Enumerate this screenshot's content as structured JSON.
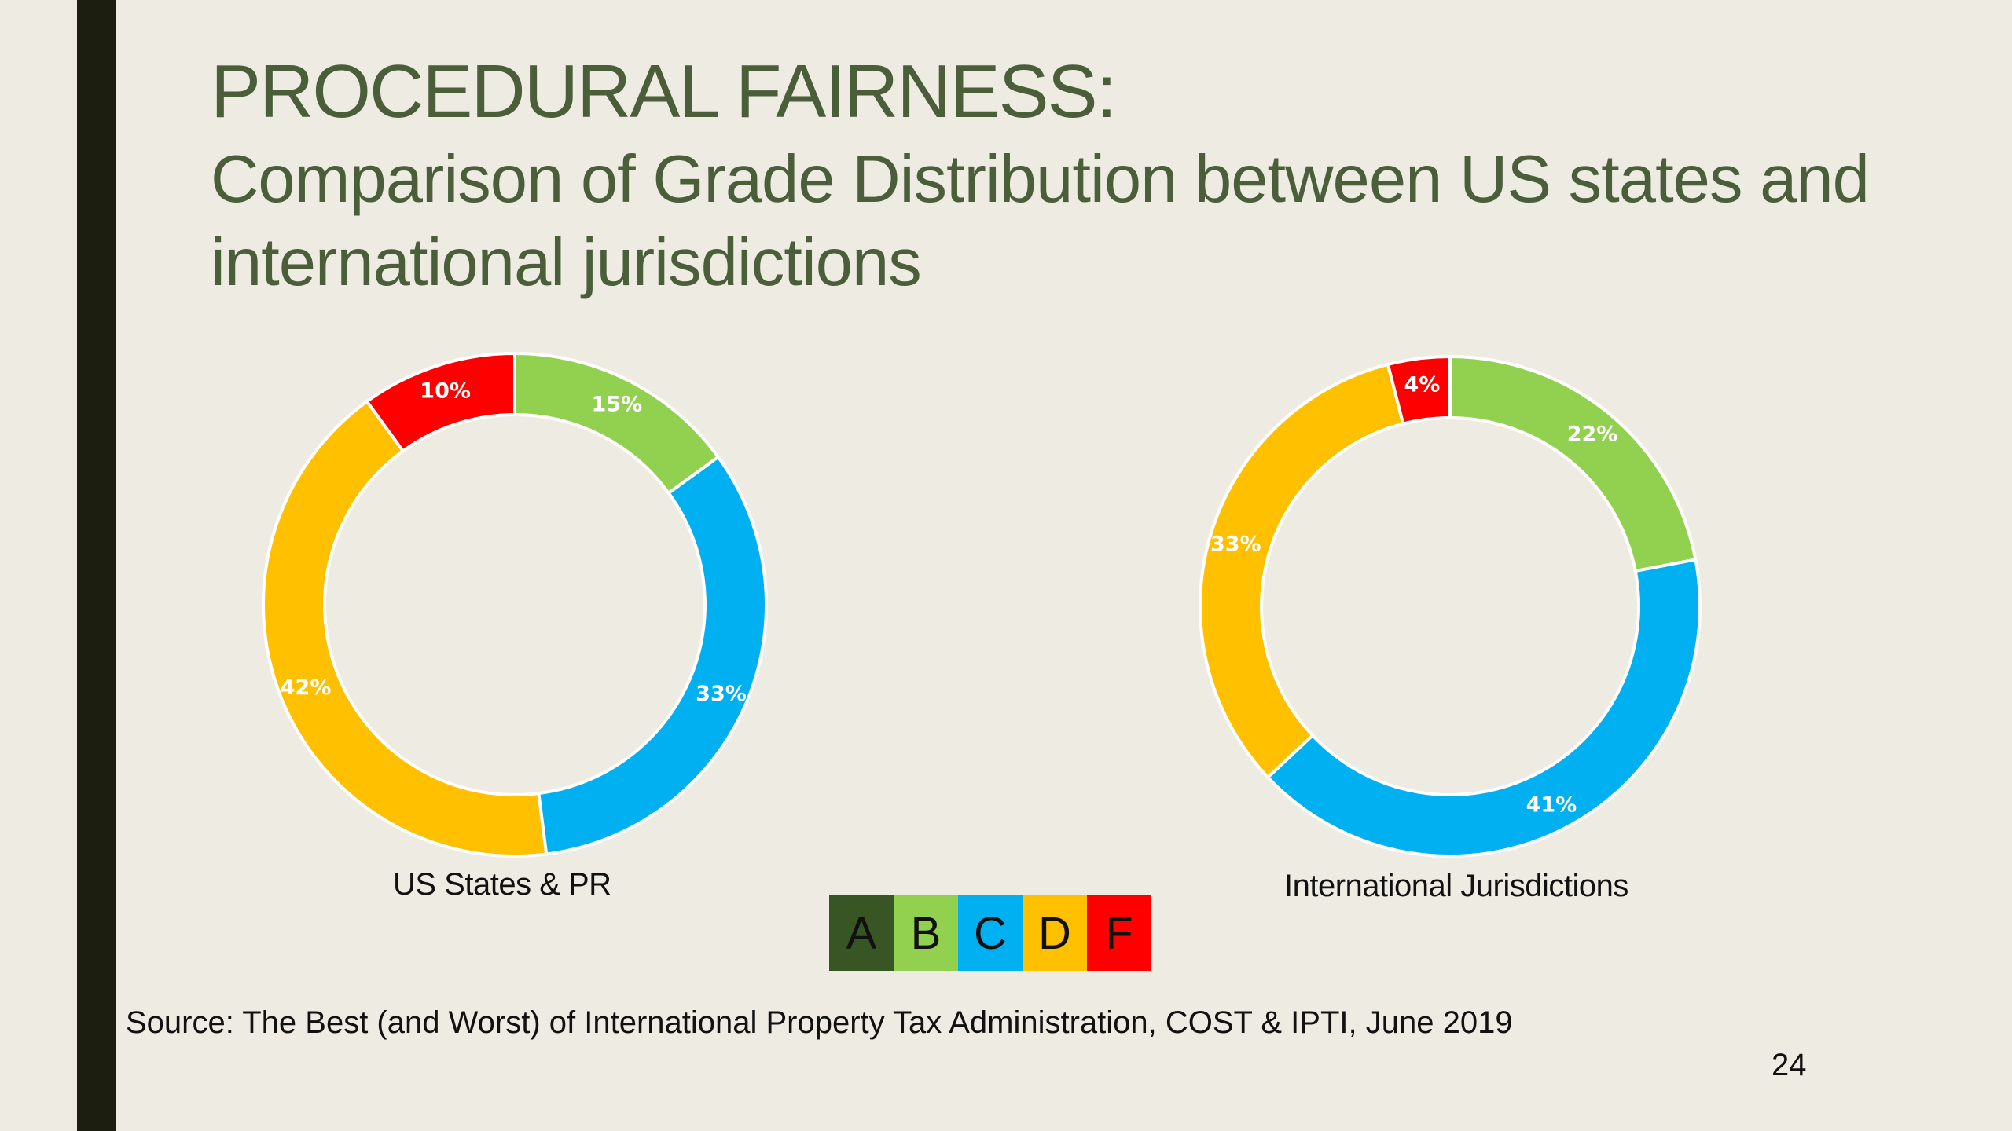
{
  "slide": {
    "title": "PROCEDURAL FAIRNESS:",
    "subtitle": "Comparison of Grade Distribution between US states and international jurisdictions",
    "source": "Source: The Best (and Worst) of International Property Tax Administration, COST & IPTI, June 2019",
    "page_number": "24"
  },
  "colors": {
    "A": "#375623",
    "B": "#92d050",
    "C": "#00b0f0",
    "D": "#ffc000",
    "F": "#ff0000"
  },
  "legend": [
    "A",
    "B",
    "C",
    "D",
    "F"
  ],
  "chart_data": [
    {
      "type": "pie",
      "variant": "donut",
      "caption": "US States & PR",
      "categories": [
        "B",
        "C",
        "D",
        "F"
      ],
      "values": [
        15,
        33,
        42,
        10
      ],
      "labels": [
        "15%",
        "33%",
        "42%",
        "10%"
      ]
    },
    {
      "type": "pie",
      "variant": "donut",
      "caption": "International Jurisdictions",
      "categories": [
        "B",
        "C",
        "D",
        "F"
      ],
      "values": [
        22,
        41,
        33,
        4
      ],
      "labels": [
        "22%",
        "41%",
        "33%",
        "4%"
      ]
    }
  ]
}
